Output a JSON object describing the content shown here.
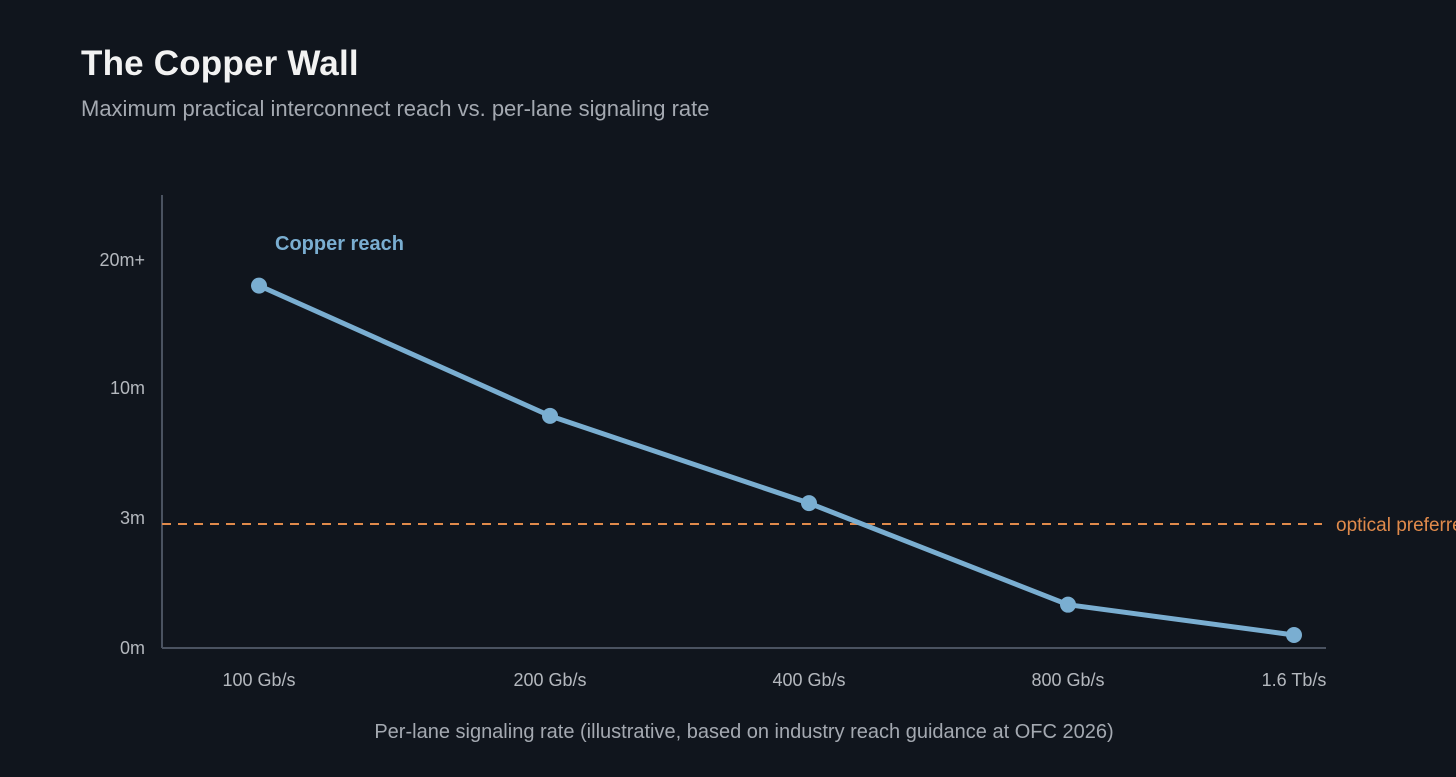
{
  "header": {
    "title": "The Copper Wall",
    "subtitle": "Maximum practical interconnect reach vs. per-lane signaling rate"
  },
  "colors": {
    "background": "#10151d",
    "series": "#7aaed1",
    "reference": "#e08a4b",
    "axis": "#4a5260"
  },
  "chart_data": {
    "type": "line",
    "title": "The Copper Wall",
    "subtitle": "Maximum practical interconnect reach vs. per-lane signaling rate",
    "xlabel": "Per-lane signaling rate (illustrative, based on industry reach guidance at OFC 2026)",
    "ylabel": "",
    "categories": [
      "100 Gb/s",
      "200 Gb/s",
      "400 Gb/s",
      "800 Gb/s",
      "1.6 Tb/s"
    ],
    "y_tick_labels": [
      "0m",
      "3m",
      "10m",
      "20m+"
    ],
    "series": [
      {
        "name": "Copper reach",
        "values": [
          18,
          8.5,
          3.8,
          1.0,
          0.3
        ]
      }
    ],
    "reference_line": {
      "value": 3,
      "label": "optical preferred",
      "style": "dashed"
    },
    "grid": false,
    "legend": "inline-label"
  }
}
